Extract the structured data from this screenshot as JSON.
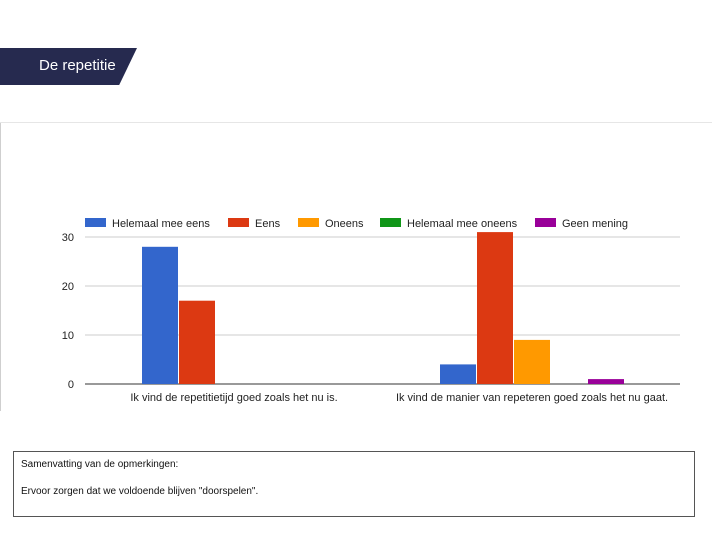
{
  "slide": {
    "title": "De repetitie"
  },
  "notes": {
    "heading": "Samenvatting van de opmerkingen:",
    "body": "Ervoor zorgen dat we voldoende blijven \"doorspelen\"."
  },
  "colors": {
    "banner": "#262a4f",
    "series": [
      "#3366cc",
      "#dc3912",
      "#ff9900",
      "#109618",
      "#990099"
    ]
  },
  "chart_data": {
    "type": "bar",
    "title": "",
    "xlabel": "",
    "ylabel": "",
    "categories": [
      "Ik vind de repetitietijd goed zoals het nu is.",
      "Ik vind de manier van repeteren goed zoals het nu gaat."
    ],
    "series": [
      {
        "name": "Helemaal mee eens",
        "values": [
          28,
          4
        ]
      },
      {
        "name": "Eens",
        "values": [
          17,
          31
        ]
      },
      {
        "name": "Oneens",
        "values": [
          0,
          9
        ]
      },
      {
        "name": "Helemaal mee oneens",
        "values": [
          0,
          0
        ]
      },
      {
        "name": "Geen mening",
        "values": [
          0,
          1
        ]
      }
    ],
    "ylim": [
      0,
      30
    ],
    "yticks": [
      0,
      10,
      20,
      30
    ],
    "grid": true,
    "legend": "top"
  }
}
